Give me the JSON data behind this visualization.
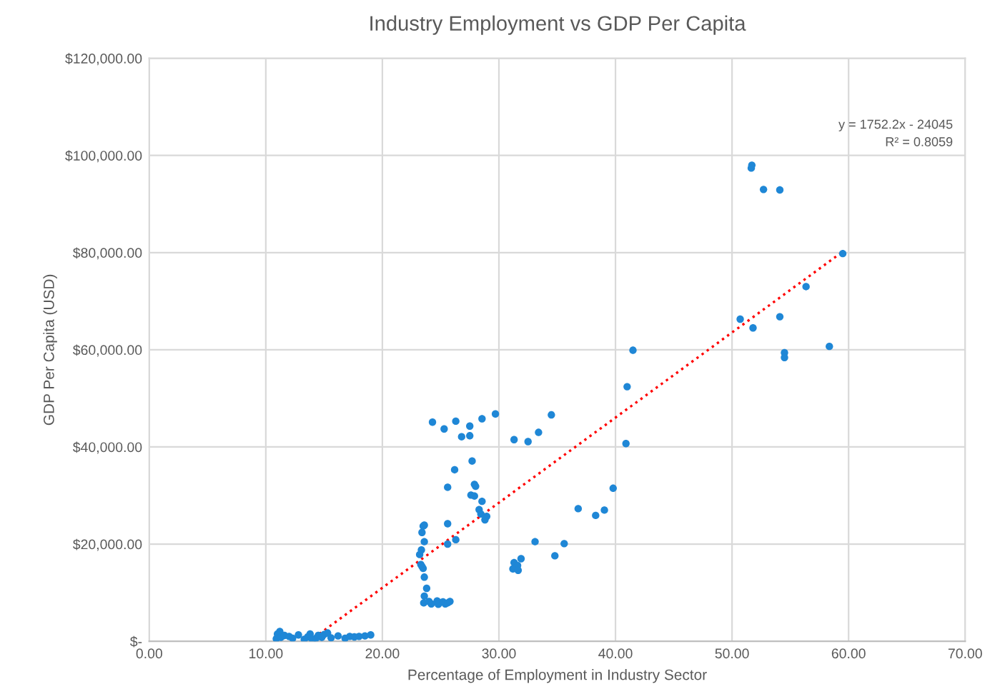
{
  "chart_data": {
    "type": "scatter",
    "title": "Industry Employment vs GDP Per Capita",
    "xlabel": "Percentage of Employment in Industry Sector",
    "ylabel": "GDP Per Capita (USD)",
    "xlim": [
      0,
      70
    ],
    "xticks": [
      {
        "value": 0,
        "label": "0.00"
      },
      {
        "value": 10,
        "label": "10.00"
      },
      {
        "value": 20,
        "label": "20.00"
      },
      {
        "value": 30,
        "label": "30.00"
      },
      {
        "value": 40,
        "label": "40.00"
      },
      {
        "value": 50,
        "label": "50.00"
      },
      {
        "value": 60,
        "label": "60.00"
      },
      {
        "value": 70,
        "label": "70.00"
      }
    ],
    "ylim": [
      0,
      120000
    ],
    "yticks": [
      {
        "value": 0,
        "label": "$-"
      },
      {
        "value": 20000,
        "label": "$20,000.00"
      },
      {
        "value": 40000,
        "label": "$40,000.00"
      },
      {
        "value": 60000,
        "label": "$60,000.00"
      },
      {
        "value": 80000,
        "label": "$80,000.00"
      },
      {
        "value": 100000,
        "label": "$100,000.00"
      },
      {
        "value": 120000,
        "label": "$120,000.00"
      }
    ],
    "grid": true,
    "legend": false,
    "annotations": [
      "y = 1752.2x - 24045",
      "R² = 0.8059"
    ],
    "series": [
      {
        "color": "#1f87d6",
        "marker": "circle",
        "x": [
          10.9,
          11.0,
          11.2,
          11.3,
          11.6,
          12.0,
          12.3,
          12.8,
          13.3,
          13.6,
          13.8,
          14.0,
          14.3,
          14.5,
          14.8,
          15.0,
          15.3,
          15.6,
          16.2,
          16.8,
          17.2,
          17.6,
          18.0,
          18.5,
          19.0,
          23.6,
          23.5,
          23.4,
          23.6,
          23.35,
          23.2,
          23.4,
          23.5,
          23.3,
          23.6,
          23.8,
          23.6,
          23.55,
          24.0,
          24.2,
          24.7,
          24.8,
          25.2,
          25.4,
          25.6,
          25.8,
          25.6,
          25.6,
          26.3,
          25.6,
          26.2,
          27.7,
          27.9,
          28.0,
          27.6,
          27.9,
          28.55,
          28.3,
          28.45,
          28.95,
          28.8,
          24.3,
          25.3,
          26.3,
          26.8,
          27.5,
          27.5,
          28.55,
          29.7,
          31.3,
          32.5,
          33.4,
          34.5,
          40.9,
          39.8,
          39.05,
          38.3,
          36.8,
          33.1,
          35.6,
          34.8,
          31.3,
          31.6,
          31.2,
          31.65,
          31.9,
          51.7,
          51.65,
          52.7,
          54.1,
          59.5,
          56.35,
          50.7,
          51.8,
          54.1,
          54.5,
          54.5,
          58.35,
          41.5,
          41.0
        ],
        "values": [
          500,
          1500,
          2000,
          800,
          1200,
          1000,
          600,
          1300,
          400,
          900,
          1500,
          300,
          600,
          1200,
          800,
          1400,
          1700,
          700,
          1100,
          600,
          1000,
          900,
          1000,
          1100,
          1300,
          23900,
          23700,
          22400,
          20500,
          18800,
          17850,
          15400,
          15000,
          15800,
          13200,
          10900,
          9300,
          7900,
          8200,
          7700,
          8300,
          7600,
          8100,
          7700,
          7900,
          8200,
          24200,
          20000,
          20900,
          31700,
          35300,
          37100,
          32300,
          31900,
          30100,
          29900,
          28800,
          27100,
          26200,
          25700,
          25000,
          45100,
          43700,
          45300,
          42100,
          44300,
          42300,
          45800,
          46800,
          41500,
          41100,
          43000,
          46600,
          40700,
          31500,
          27000,
          25900,
          27300,
          20500,
          20100,
          17600,
          16200,
          15600,
          14900,
          14600,
          17000,
          98000,
          97400,
          93000,
          92900,
          79800,
          73000,
          66300,
          64500,
          66800,
          59400,
          58400,
          60700,
          59900,
          52400
        ]
      },
      {
        "type": "line",
        "color": "#ff0000",
        "line_style": "dotted",
        "marker": "none",
        "x": [
          13.72,
          59.5
        ],
        "values": [
          0,
          80200
        ]
      }
    ]
  }
}
